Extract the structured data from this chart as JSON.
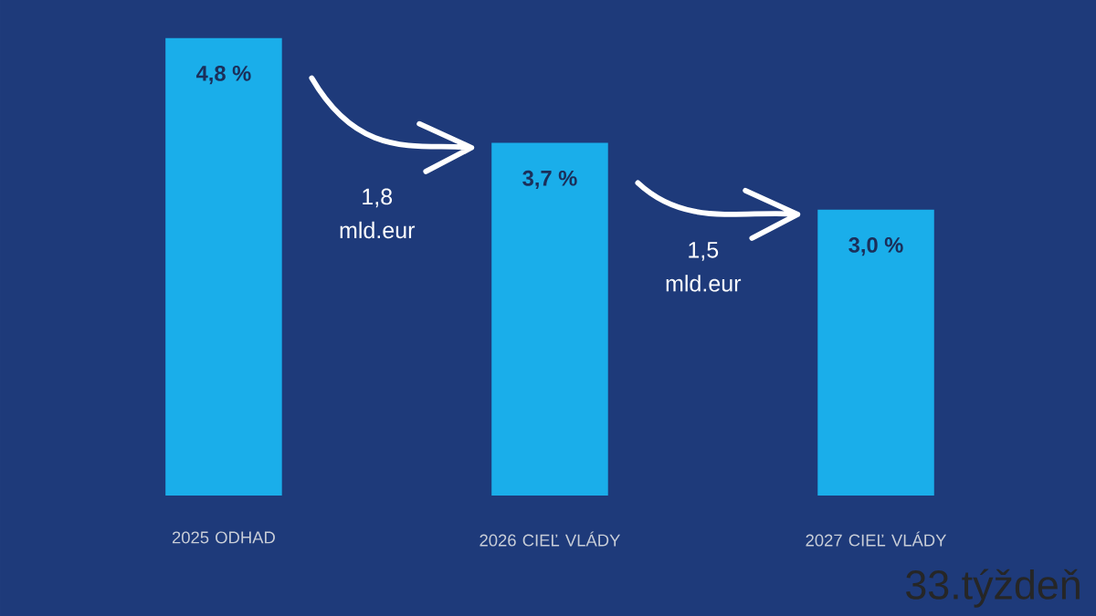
{
  "chart_data": {
    "type": "bar",
    "categories": [
      "2025 ODHAD",
      "2026 CIEĽ VLÁDY",
      "2027 CIEĽ VLÁDY"
    ],
    "values": [
      4.8,
      3.7,
      3.0
    ],
    "value_labels": [
      "4,8 %",
      "3,7 %",
      "3,0 %"
    ],
    "color": "#1aaeea",
    "annotations": [
      "1,8 mld.eur",
      "1,5 mld.eur",
      "33.týždeň"
    ]
  }
}
